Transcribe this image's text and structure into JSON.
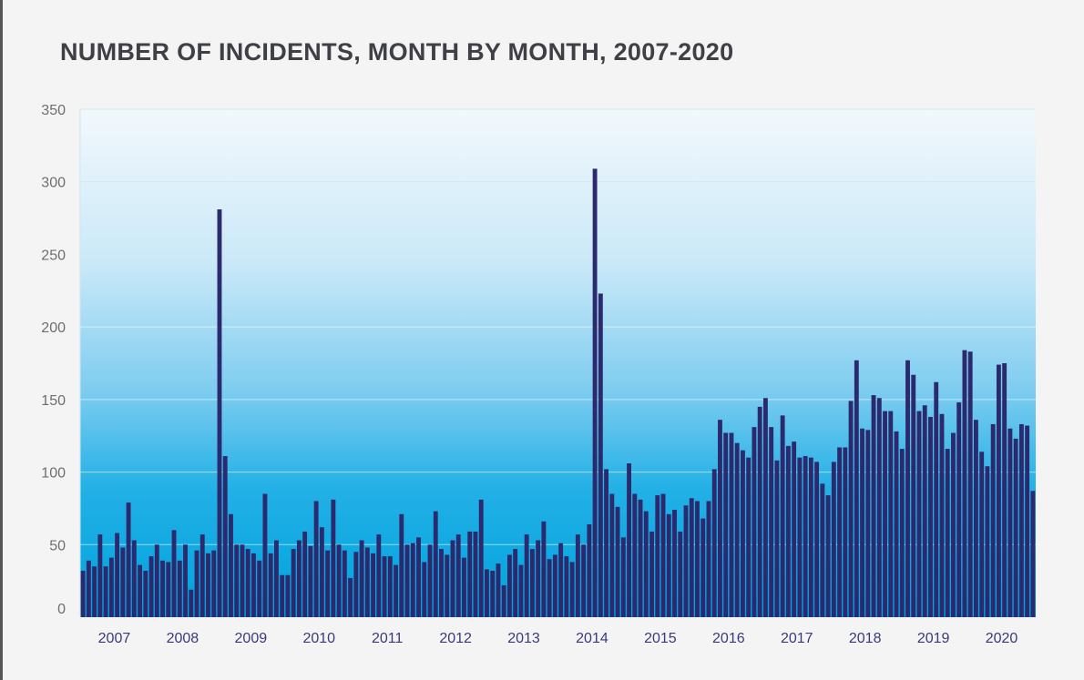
{
  "chart_data": {
    "type": "bar",
    "title": "NUMBER OF INCIDENTS, MONTH BY MONTH, 2007-2020",
    "xlabel": "",
    "ylabel": "",
    "ylim": [
      0,
      350
    ],
    "yticks": [
      0,
      50,
      100,
      150,
      200,
      250,
      300,
      350
    ],
    "year_labels": [
      "2007",
      "2008",
      "2009",
      "2010",
      "2011",
      "2012",
      "2013",
      "2014",
      "2015",
      "2016",
      "2017",
      "2018",
      "2019",
      "2020"
    ],
    "months_per_year": 12,
    "grid": true,
    "colors": {
      "bar": "#2b2a6f",
      "gradient_top": "#f0f7fb",
      "gradient_bottom": "#00a7e1",
      "grid": "#cde8f5"
    },
    "values": [
      32,
      39,
      35,
      57,
      35,
      41,
      58,
      48,
      79,
      53,
      36,
      32,
      42,
      50,
      39,
      38,
      60,
      39,
      50,
      19,
      46,
      57,
      44,
      46,
      281,
      111,
      71,
      50,
      50,
      47,
      44,
      39,
      85,
      44,
      53,
      29,
      29,
      47,
      53,
      59,
      49,
      80,
      62,
      46,
      81,
      50,
      46,
      27,
      45,
      53,
      48,
      44,
      57,
      42,
      42,
      36,
      71,
      50,
      51,
      55,
      38,
      50,
      73,
      47,
      43,
      53,
      57,
      41,
      59,
      59,
      81,
      33,
      32,
      37,
      22,
      43,
      47,
      36,
      57,
      47,
      53,
      66,
      40,
      43,
      51,
      42,
      38,
      57,
      50,
      64,
      309,
      223,
      102,
      85,
      76,
      55,
      106,
      85,
      81,
      73,
      59,
      84,
      85,
      71,
      74,
      59,
      77,
      82,
      80,
      68,
      80,
      102,
      136,
      127,
      127,
      120,
      115,
      110,
      131,
      145,
      151,
      131,
      108,
      139,
      118,
      121,
      110,
      111,
      110,
      107,
      92,
      84,
      107,
      117,
      117,
      149,
      177,
      130,
      129,
      153,
      151,
      142,
      142,
      128,
      116,
      177,
      167,
      142,
      146,
      138,
      162,
      140,
      116,
      127,
      148,
      184,
      183,
      136,
      114,
      104,
      133,
      174,
      175,
      130,
      123,
      133,
      132,
      87
    ]
  }
}
